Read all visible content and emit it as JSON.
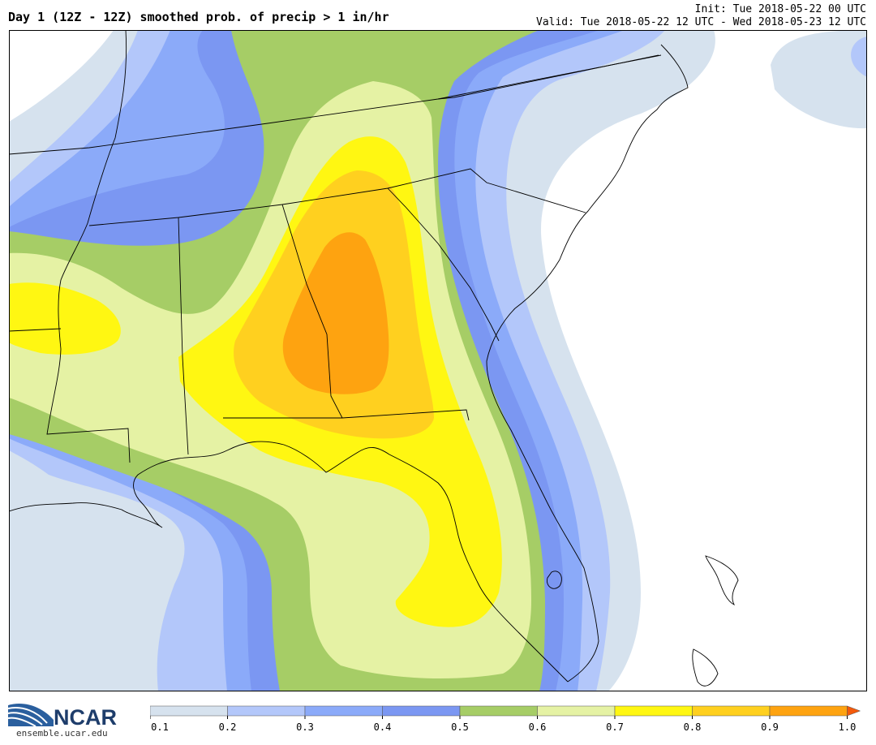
{
  "header": {
    "title": "Day 1 (12Z - 12Z) smoothed prob. of precip > 1 in/hr",
    "init": "Init: Tue 2018-05-22 00 UTC",
    "valid": "Valid: Tue 2018-05-22 12 UTC - Wed 2018-05-23 12 UTC"
  },
  "logo": {
    "text": "NCAR",
    "url": "ensemble.ucar.edu"
  },
  "colorbar": {
    "ticks": [
      "0.1",
      "0.2",
      "0.3",
      "0.4",
      "0.5",
      "0.6",
      "0.7",
      "0.8",
      "0.9",
      "1.0"
    ],
    "colors": [
      "#d6e2ee",
      "#b3c7fa",
      "#8baaf9",
      "#7b97f2",
      "#a6cd66",
      "#e5f2a4",
      "#fff712",
      "#ffd01f",
      "#fea310"
    ],
    "arrow_color": "#f45a0b"
  },
  "map": {
    "region": "Southeastern United States",
    "probability_colors": {
      "0.1": "#d6e2ee",
      "0.2": "#b3c7fa",
      "0.3": "#8baaf9",
      "0.4": "#7b97f2",
      "0.5": "#a6cd66",
      "0.6": "#e5f2a4",
      "0.7": "#fff712",
      "0.8": "#ffd01f",
      "0.9": "#fea310"
    }
  }
}
